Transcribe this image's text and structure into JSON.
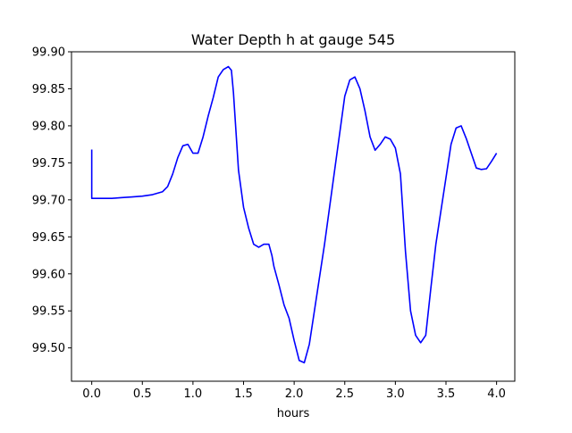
{
  "chart_data": {
    "type": "line",
    "title": "Water Depth h at gauge 545",
    "xlabel": "hours",
    "ylabel": "",
    "xlim": [
      -0.2,
      4.18
    ],
    "ylim": [
      99.455,
      99.9
    ],
    "xticks": [
      0.0,
      0.5,
      1.0,
      1.5,
      2.0,
      2.5,
      3.0,
      3.5,
      4.0
    ],
    "xtick_labels": [
      "0.0",
      "0.5",
      "1.0",
      "1.5",
      "2.0",
      "2.5",
      "3.0",
      "3.5",
      "4.0"
    ],
    "yticks": [
      99.5,
      99.55,
      99.6,
      99.65,
      99.7,
      99.75,
      99.8,
      99.85,
      99.9
    ],
    "ytick_labels": [
      "99.50",
      "99.55",
      "99.60",
      "99.65",
      "99.70",
      "99.75",
      "99.80",
      "99.85",
      "99.90"
    ],
    "grid": false,
    "series": [
      {
        "color": "#0000ff",
        "x": [
          0.0,
          0.0,
          0.1,
          0.2,
          0.3,
          0.4,
          0.5,
          0.6,
          0.65,
          0.7,
          0.75,
          0.8,
          0.85,
          0.9,
          0.95,
          1.0,
          1.05,
          1.1,
          1.15,
          1.2,
          1.25,
          1.3,
          1.35,
          1.38,
          1.4,
          1.45,
          1.5,
          1.55,
          1.6,
          1.65,
          1.7,
          1.75,
          1.78,
          1.8,
          1.85,
          1.9,
          1.95,
          2.0,
          2.05,
          2.1,
          2.15,
          2.2,
          2.3,
          2.4,
          2.5,
          2.55,
          2.6,
          2.65,
          2.7,
          2.75,
          2.8,
          2.85,
          2.9,
          2.95,
          3.0,
          3.05,
          3.1,
          3.15,
          3.2,
          3.25,
          3.3,
          3.35,
          3.4,
          3.45,
          3.5,
          3.55,
          3.6,
          3.65,
          3.7,
          3.75,
          3.8,
          3.85,
          3.9,
          3.95,
          4.0
        ],
        "y": [
          99.768,
          99.702,
          99.702,
          99.702,
          99.703,
          99.704,
          99.705,
          99.707,
          99.709,
          99.711,
          99.718,
          99.735,
          99.757,
          99.773,
          99.775,
          99.763,
          99.763,
          99.785,
          99.813,
          99.838,
          99.866,
          99.876,
          99.88,
          99.875,
          99.845,
          99.74,
          99.69,
          99.662,
          99.64,
          99.636,
          99.64,
          99.64,
          99.625,
          99.61,
          99.585,
          99.558,
          99.54,
          99.51,
          99.483,
          99.48,
          99.505,
          99.55,
          99.64,
          99.74,
          99.84,
          99.862,
          99.866,
          99.85,
          99.82,
          99.785,
          99.767,
          99.775,
          99.785,
          99.782,
          99.77,
          99.735,
          99.63,
          99.55,
          99.517,
          99.507,
          99.517,
          99.58,
          99.64,
          99.685,
          99.73,
          99.775,
          99.797,
          99.8,
          99.783,
          99.763,
          99.743,
          99.741,
          99.742,
          99.752,
          99.763
        ]
      }
    ]
  }
}
